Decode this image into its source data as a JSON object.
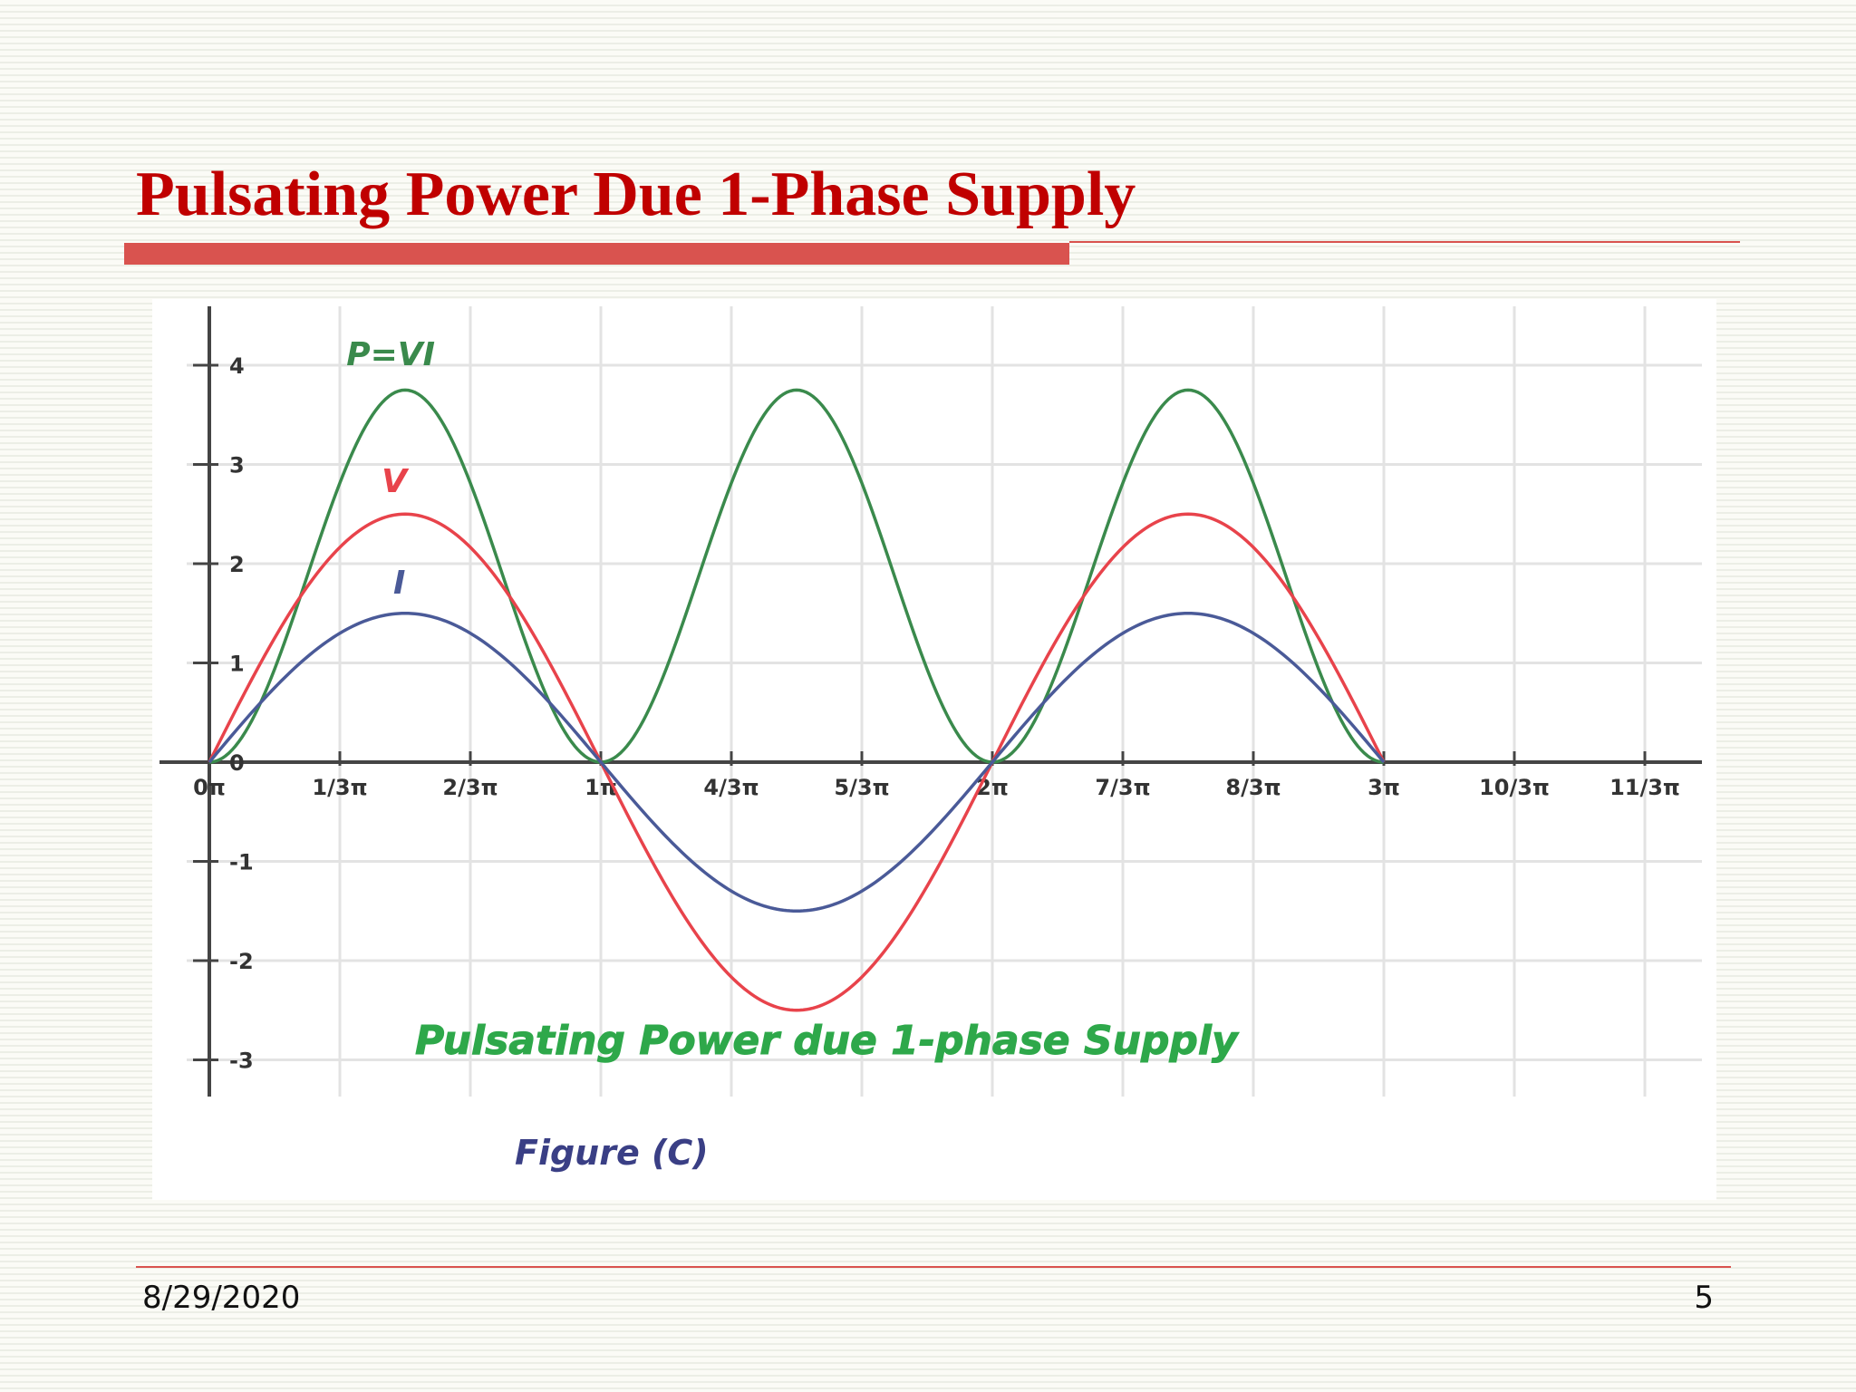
{
  "slide": {
    "title": "Pulsating Power Due 1-Phase Supply",
    "date": "8/29/2020",
    "page_number": "5"
  },
  "colors": {
    "title": "#c00000",
    "accent_bar": "#d9534f",
    "voltage": "#e8434b",
    "current": "#4a5a98",
    "power": "#3a8a4c",
    "chart_title": "#2ea84a",
    "caption": "#3a3f85",
    "grid": "#e3e3e3",
    "axis": "#444444"
  },
  "chart_data": {
    "type": "line",
    "title": "Pulsating Power due 1-phase Supply",
    "caption": "Figure (C)",
    "xlabel": "",
    "ylabel": "",
    "x_ticks": [
      "0π",
      "1/3π",
      "2/3π",
      "1π",
      "4/3π",
      "5/3π",
      "2π",
      "7/3π",
      "8/3π",
      "3π",
      "10/3π",
      "11/3π"
    ],
    "y_ticks": [
      "4",
      "3",
      "2",
      "1",
      "0",
      "-1",
      "-2",
      "-3"
    ],
    "xlim_pi": [
      0,
      3.82
    ],
    "ylim": [
      -3.4,
      4.6
    ],
    "grid": true,
    "series": [
      {
        "name": "P=VI",
        "color_key": "power",
        "x_pi": [
          0,
          0.25,
          0.5,
          0.75,
          1,
          1.25,
          1.5,
          1.75,
          2,
          2.25,
          2.5,
          2.75,
          3
        ],
        "values": [
          0,
          1.875,
          3.75,
          1.875,
          0,
          1.875,
          3.75,
          1.875,
          0,
          1.875,
          3.75,
          1.875,
          0
        ],
        "amplitude": 3.75,
        "equation": "3.75·sin²(x)",
        "x_range_pi": [
          0,
          3
        ]
      },
      {
        "name": "V",
        "color_key": "voltage",
        "x_pi": [
          0,
          0.25,
          0.5,
          0.75,
          1,
          1.25,
          1.5,
          1.75,
          2,
          2.25,
          2.5,
          2.75,
          3
        ],
        "values": [
          0,
          1.77,
          2.5,
          1.77,
          0,
          -1.77,
          -2.5,
          -1.77,
          0,
          1.77,
          2.5,
          1.77,
          0
        ],
        "amplitude": 2.5,
        "equation": "2.5·sin(x)",
        "x_range_pi": [
          0,
          3
        ]
      },
      {
        "name": "I",
        "color_key": "current",
        "x_pi": [
          0,
          0.25,
          0.5,
          0.75,
          1,
          1.25,
          1.5,
          1.75,
          2,
          2.25,
          2.5,
          2.75,
          3
        ],
        "values": [
          0,
          1.06,
          1.5,
          1.06,
          0,
          -1.06,
          -1.5,
          -1.06,
          0,
          1.06,
          1.5,
          1.06,
          0
        ],
        "amplitude": 1.5,
        "equation": "1.5·sin(x)",
        "x_range_pi": [
          0,
          3
        ]
      }
    ]
  }
}
